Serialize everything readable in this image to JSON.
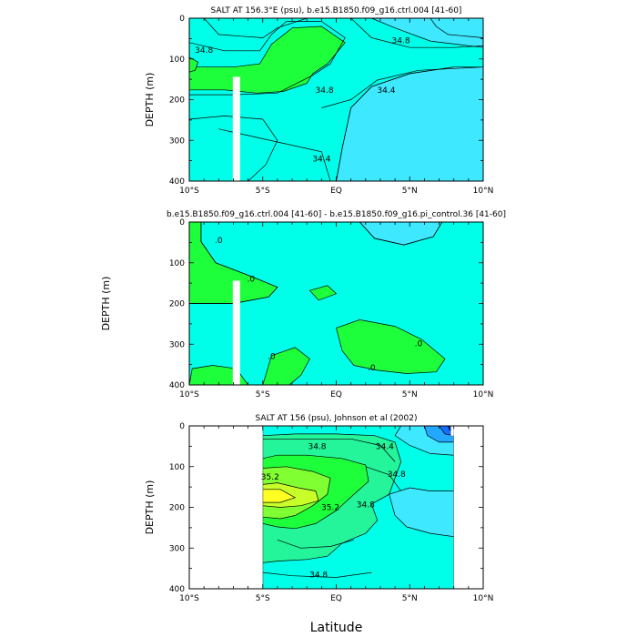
{
  "colors": {
    "cyan_bright": "#00ffe8",
    "cyan_low": "#3ee8ff",
    "green": "#1eff3c",
    "green_light": "#80ff33",
    "yellow_green": "#c8ff28",
    "yellow": "#ffff22",
    "teal_mid": "#24f59a",
    "blue_light": "#22a8ff",
    "blue": "#1470ff",
    "blue_dark": "#0a2ab0",
    "mask": "#ffffff"
  },
  "x_tick_labels": [
    "10°S",
    "5°S",
    "EQ",
    "5°N",
    "10°N"
  ],
  "y_tick_labels": [
    "0",
    "100",
    "200",
    "300",
    "400"
  ],
  "y_axis_label": "DEPTH (m)",
  "x_axis_label": "Latitude",
  "chart_data": [
    {
      "type": "heatmap",
      "name": "panel-1",
      "title": "SALT AT 156.3°E (psu), b.e15.B1850.f09_g16.ctrl.004 [41-60]",
      "xlabel": "",
      "ylabel": "DEPTH (m)",
      "xlim": [
        -10,
        10
      ],
      "ylim": [
        400,
        0
      ],
      "contour_labels": [
        {
          "text": "34.8",
          "x": -9.0,
          "y": 78
        },
        {
          "text": "34.8",
          "x": 4.4,
          "y": 55
        },
        {
          "text": "34.8",
          "x": -0.8,
          "y": 176
        },
        {
          "text": "34.4",
          "x": 3.4,
          "y": 176
        },
        {
          "text": "34.4",
          "x": -1.0,
          "y": 345
        }
      ]
    },
    {
      "type": "heatmap",
      "name": "panel-2",
      "title": "b.e15.B1850.f09_g16.ctrl.004 [41-60] - b.e15.B1850.f09_g16.pi_control.36 [41-60]",
      "xlabel": "",
      "ylabel": "DEPTH (m)",
      "xlim": [
        -10,
        10
      ],
      "ylim": [
        400,
        0
      ],
      "contour_labels": [
        {
          "text": ".0",
          "x": -8.0,
          "y": 45
        },
        {
          "text": ".0",
          "x": -5.8,
          "y": 140
        },
        {
          "text": ".0",
          "x": -4.4,
          "y": 330
        },
        {
          "text": ".0",
          "x": 2.4,
          "y": 358
        },
        {
          "text": ".0",
          "x": 5.6,
          "y": 298
        }
      ]
    },
    {
      "type": "heatmap",
      "name": "panel-3",
      "title": "SALT AT 156 (psu), Johnson et al (2002)",
      "xlabel": "Latitude",
      "ylabel": "DEPTH (m)",
      "xlim": [
        -10,
        10
      ],
      "ylim": [
        400,
        0
      ],
      "contour_labels": [
        {
          "text": "34.8",
          "x": -1.3,
          "y": 50
        },
        {
          "text": "34.4",
          "x": 3.3,
          "y": 50
        },
        {
          "text": "35.2",
          "x": -4.5,
          "y": 125
        },
        {
          "text": "34.8",
          "x": 4.1,
          "y": 118
        },
        {
          "text": "35.2",
          "x": -0.4,
          "y": 200
        },
        {
          "text": "34.8",
          "x": 2.0,
          "y": 193
        },
        {
          "text": "34.8",
          "x": -1.2,
          "y": 365
        }
      ]
    }
  ]
}
